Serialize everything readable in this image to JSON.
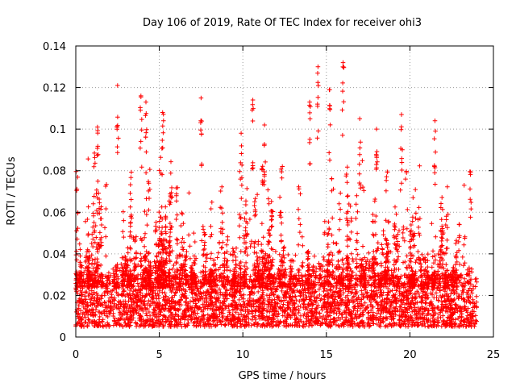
{
  "chart_data": {
    "type": "scatter",
    "title": "Day 106 of 2019, Rate Of TEC Index for receiver ohi3",
    "xlabel": "GPS time / hours",
    "ylabel": "ROTI / TECUs",
    "xlim": [
      0,
      25
    ],
    "ylim": [
      0,
      0.14
    ],
    "x_ticks": [
      0,
      5,
      10,
      15,
      20,
      25
    ],
    "x_tick_labels": [
      "0",
      "5",
      "10",
      "15",
      "20",
      "25"
    ],
    "y_ticks": [
      0,
      0.02,
      0.04,
      0.06,
      0.08,
      0.1,
      0.12,
      0.14
    ],
    "y_tick_labels": [
      "0",
      "0.02",
      "0.04",
      "0.06",
      "0.08",
      "0.1",
      "0.12",
      "0.14"
    ],
    "grid": true,
    "marker": "+",
    "series": [
      {
        "name": "ROTI",
        "color": "#ff0000",
        "x_range": [
          0,
          24
        ],
        "typical_range": [
          0.005,
          0.03
        ],
        "notable_peaks": [
          {
            "x": 2.5,
            "y": 0.121
          },
          {
            "x": 3.9,
            "y": 0.116
          },
          {
            "x": 4.2,
            "y": 0.113
          },
          {
            "x": 7.5,
            "y": 0.115
          },
          {
            "x": 10.6,
            "y": 0.114
          },
          {
            "x": 14.0,
            "y": 0.113
          },
          {
            "x": 14.5,
            "y": 0.13
          },
          {
            "x": 15.2,
            "y": 0.119
          },
          {
            "x": 16.0,
            "y": 0.132
          },
          {
            "x": 19.5,
            "y": 0.107
          },
          {
            "x": 21.5,
            "y": 0.104
          },
          {
            "x": 1.3,
            "y": 0.101
          },
          {
            "x": 5.2,
            "y": 0.108
          },
          {
            "x": 9.9,
            "y": 0.098
          },
          {
            "x": 11.3,
            "y": 0.102
          },
          {
            "x": 17.0,
            "y": 0.105
          },
          {
            "x": 18.0,
            "y": 0.1
          }
        ]
      }
    ]
  }
}
